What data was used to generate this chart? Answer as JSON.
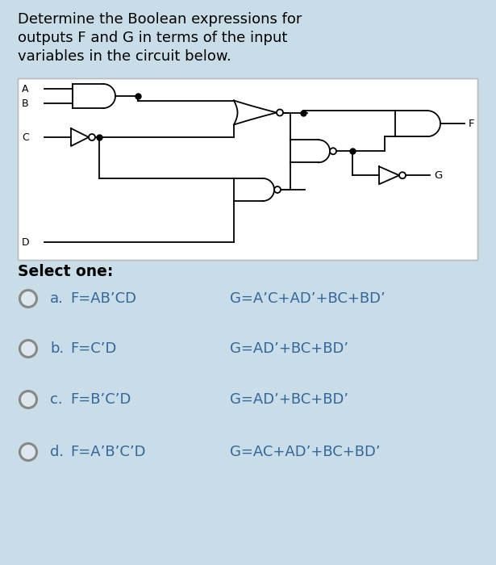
{
  "bg_color": "#c8dde8",
  "title_lines": [
    "Determine the Boolean expressions for",
    "outputs F and G in terms of the input",
    "variables in the circuit below."
  ],
  "title_fontsize": 13.0,
  "select_text": "Select one:",
  "options": [
    {
      "letter": "a.",
      "f_expr": "F=AB’CD",
      "g_expr": "G=A’C+AD’+BC+BD’"
    },
    {
      "letter": "b.",
      "f_expr": "F=C’D",
      "g_expr": "G=AD’+BC+BD’"
    },
    {
      "letter": "c.",
      "f_expr": "F=B’C’D",
      "g_expr": "G=AD’+BC+BD’"
    },
    {
      "letter": "d.",
      "f_expr": "F=A’B’C’D",
      "g_expr": "G=AC+AD’+BC+BD’"
    }
  ],
  "line_color": "#000000",
  "gate_lw": 1.3,
  "wire_lw": 1.3,
  "dot_size": 5,
  "circuit_bg": "#ffffff",
  "text_color_title": "#000000",
  "text_color_options": "#336699",
  "radio_color": "#888888",
  "select_color": "#000000"
}
